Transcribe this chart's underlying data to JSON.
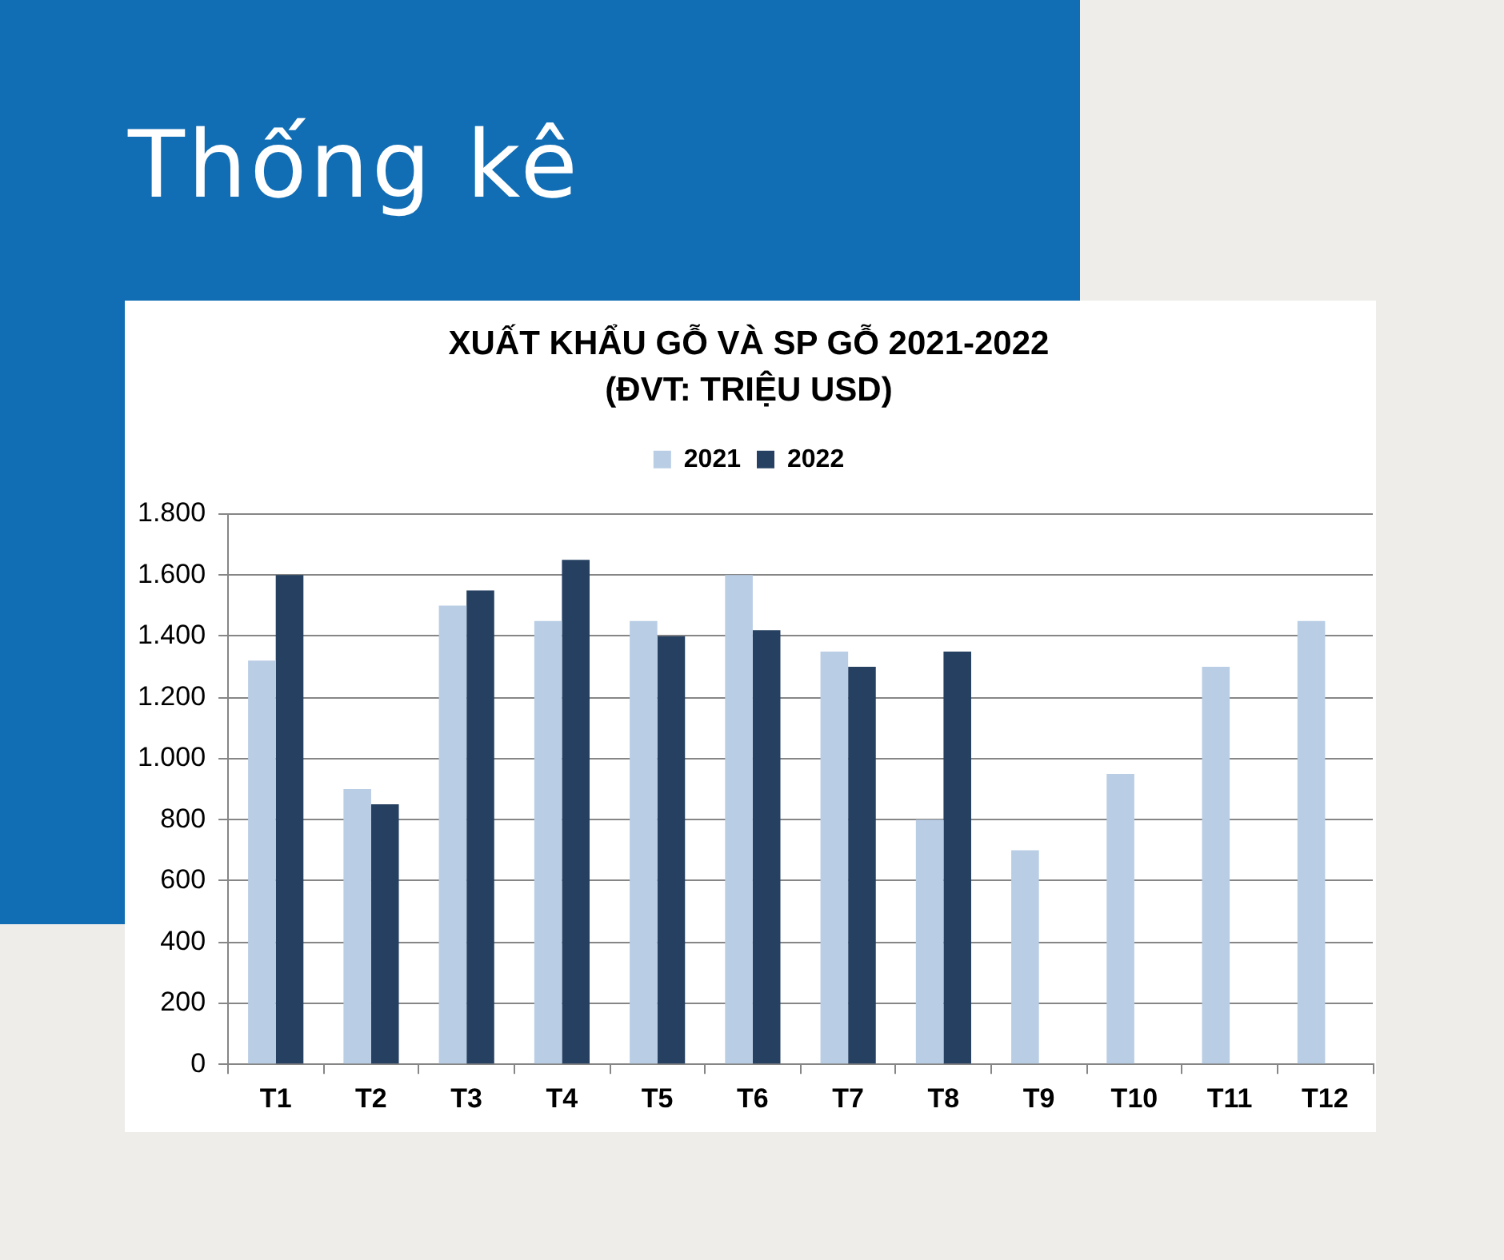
{
  "chart_data": {
    "type": "bar",
    "title": "XUẤT KHẨU GỖ VÀ SP GỖ 2021-2022",
    "subtitle": "(ĐVT: TRIỆU USD)",
    "annotations": [
      "Thống kê"
    ],
    "categories": [
      "T1",
      "T2",
      "T3",
      "T4",
      "T5",
      "T6",
      "T7",
      "T8",
      "T9",
      "T10",
      "T11",
      "T12"
    ],
    "series": [
      {
        "name": "2021",
        "color": "#b9cde5",
        "values": [
          1320,
          900,
          1500,
          1450,
          1450,
          1600,
          1350,
          800,
          700,
          950,
          1300,
          1450
        ]
      },
      {
        "name": "2022",
        "color": "#254061",
        "values": [
          1600,
          850,
          1550,
          1650,
          1400,
          1420,
          1300,
          1350,
          null,
          null,
          null,
          null
        ]
      }
    ],
    "ylim": [
      0,
      1800
    ],
    "yticks": [
      0,
      200,
      400,
      600,
      800,
      {
        "value": 1000,
        "label": "1.000"
      },
      {
        "value": 1200,
        "label": "1.200"
      },
      {
        "value": 1400,
        "label": "1.400"
      },
      {
        "value": 1600,
        "label": "1.600"
      },
      {
        "value": 1800,
        "label": "1.800"
      }
    ],
    "grid": "y",
    "legend": "top"
  }
}
